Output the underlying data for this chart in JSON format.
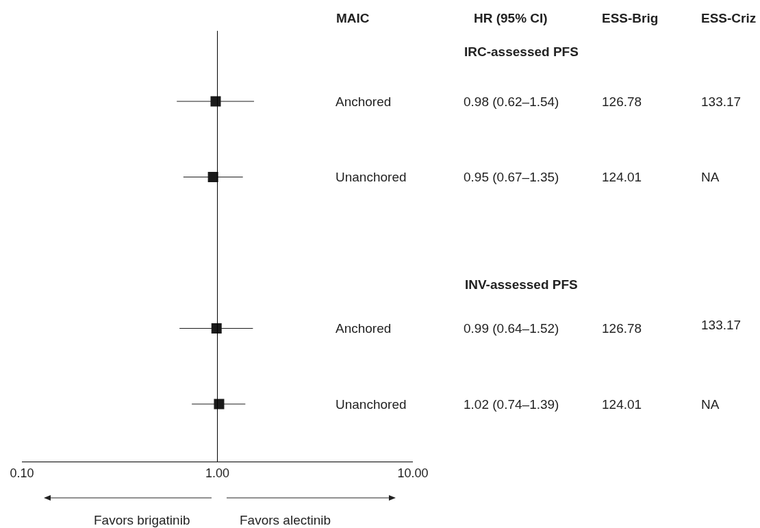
{
  "chart_data": {
    "type": "scatter",
    "orientation": "horizontal",
    "categories": [
      "Anchored",
      "Unanchored",
      null,
      "Anchored",
      "Unanchored"
    ],
    "values": [
      0.98,
      0.95,
      null,
      0.99,
      1.02
    ],
    "errors": [
      [
        0.62,
        1.54
      ],
      [
        0.67,
        1.35
      ],
      null,
      [
        0.64,
        1.52
      ],
      [
        0.74,
        1.39
      ]
    ],
    "value_labels": [
      "0.98 (0.62–1.54)",
      "0.95 (0.67–1.35)",
      null,
      "0.99 (0.64–1.52)",
      "1.02 (0.74–1.39)"
    ],
    "color": "#1a1a1a",
    "marker": "square",
    "log": "x",
    "grid": false,
    "xlim": [
      0.1,
      10
    ],
    "xticks": [
      {
        "value": 0.1,
        "label": "0.10"
      },
      {
        "value": 1,
        "label": "1.00"
      },
      {
        "value": 10,
        "label": "10.00"
      }
    ],
    "ref_lines": [
      {
        "axis": "x",
        "value": 1
      }
    ],
    "annotations": [
      "MAIC",
      "HR (95% CI)",
      "ESS-Brig",
      "ESS-Criz",
      "IRC-assessed PFS",
      "126.78",
      "133.17",
      "124.01",
      "NA",
      "INV-assessed PFS",
      "126.78",
      "133.17",
      "124.01",
      "NA",
      "Favors brigatinib",
      "Favors alectinib"
    ]
  }
}
